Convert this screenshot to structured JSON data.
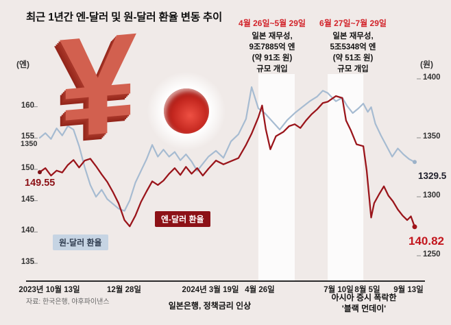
{
  "title": "최근 1년간 엔-달러 및 원-달러 환율 변동 추이",
  "source": "자료: 한국은행, 야후파이낸스",
  "graphics": {
    "yen_symbol": "¥"
  },
  "axes": {
    "left_unit": "(엔)",
    "right_unit": "(원)",
    "left_ticks": [
      "160",
      "155",
      "150",
      "145",
      "140",
      "135"
    ],
    "right_ticks": [
      "1400",
      "1350",
      "1300",
      "1250"
    ],
    "x_labels": [
      "2023년 10월 13일",
      "12월 28일",
      "2024년 3월 19일",
      "4월 26일",
      "7월 10일",
      "8월 5일",
      "9월 13일"
    ]
  },
  "labels": {
    "yen_start": "149.55",
    "won_start": "1350",
    "won_end": "1329.5",
    "yen_end": "140.82",
    "yen_legend": "엔-달러 환율",
    "won_legend": "원-달러 환율"
  },
  "annotations": {
    "intervention1": {
      "date_range": "4월 26일~5월 29일",
      "lines": [
        "일본 재무성,",
        "9조7885억 엔",
        "(약 91조 원)",
        "규모 개입"
      ]
    },
    "intervention2": {
      "date_range": "6월 27일~7월 29일",
      "lines": [
        "일본 재무성,",
        "5조5348억 엔",
        "(약 51조 원)",
        "규모 개입"
      ]
    },
    "boj": "일본은행, 정책금리 인상",
    "black_monday": [
      "아시아 증시 폭락한",
      "'블랙 먼데이'"
    ]
  },
  "colors": {
    "background": "#f0eae8",
    "yen_line": "#9a151b",
    "won_line": "#a6bbd1",
    "accent_red": "#d2232a",
    "bright_red": "#c3161d",
    "legend_won_bg": "#c6d4e3",
    "legend_yen_bg": "#8c1116",
    "band": "rgba(255,255,255,0.8)"
  },
  "chart_data": {
    "type": "line",
    "title": "최근 1년간 엔-달러 및 원-달러 환율 변동 추이",
    "x_unit": "fraction of period 2023-10-13 → 2024-09-13",
    "x_range_dates": [
      "2023년 10월 13일",
      "2024년 9월 13일"
    ],
    "legend_position": "on-chart",
    "grid": false,
    "series": [
      {
        "id": "won",
        "name": "원-달러 환율",
        "axis": "right",
        "unit": "원",
        "color": "#a6bbd1",
        "ylim": [
          1250,
          1400
        ],
        "start_value": 1350,
        "end_value": 1329.5,
        "points": [
          [
            0,
            1350
          ],
          [
            0.015,
            1354
          ],
          [
            0.03,
            1349
          ],
          [
            0.045,
            1358
          ],
          [
            0.06,
            1352
          ],
          [
            0.075,
            1360
          ],
          [
            0.09,
            1357
          ],
          [
            0.105,
            1343
          ],
          [
            0.12,
            1325
          ],
          [
            0.135,
            1310
          ],
          [
            0.15,
            1300
          ],
          [
            0.165,
            1306
          ],
          [
            0.18,
            1298
          ],
          [
            0.195,
            1294
          ],
          [
            0.21,
            1290
          ],
          [
            0.226,
            1288
          ],
          [
            0.24,
            1297
          ],
          [
            0.255,
            1312
          ],
          [
            0.27,
            1322
          ],
          [
            0.285,
            1332
          ],
          [
            0.3,
            1344
          ],
          [
            0.315,
            1334
          ],
          [
            0.33,
            1340
          ],
          [
            0.345,
            1334
          ],
          [
            0.36,
            1338
          ],
          [
            0.375,
            1331
          ],
          [
            0.39,
            1336
          ],
          [
            0.405,
            1330
          ],
          [
            0.42,
            1322
          ],
          [
            0.435,
            1328
          ],
          [
            0.45,
            1334
          ],
          [
            0.47,
            1339
          ],
          [
            0.49,
            1333
          ],
          [
            0.51,
            1347
          ],
          [
            0.53,
            1353
          ],
          [
            0.55,
            1366
          ],
          [
            0.565,
            1393
          ],
          [
            0.583,
            1375
          ],
          [
            0.6,
            1371
          ],
          [
            0.62,
            1364
          ],
          [
            0.64,
            1357
          ],
          [
            0.66,
            1365
          ],
          [
            0.68,
            1371
          ],
          [
            0.7,
            1376
          ],
          [
            0.72,
            1381
          ],
          [
            0.74,
            1385
          ],
          [
            0.755,
            1390
          ],
          [
            0.768,
            1388
          ],
          [
            0.78,
            1384
          ],
          [
            0.79,
            1381
          ],
          [
            0.807,
            1384
          ],
          [
            0.82,
            1377
          ],
          [
            0.835,
            1371
          ],
          [
            0.85,
            1375
          ],
          [
            0.863,
            1379
          ],
          [
            0.875,
            1372
          ],
          [
            0.884,
            1376
          ],
          [
            0.895,
            1362
          ],
          [
            0.91,
            1352
          ],
          [
            0.925,
            1343
          ],
          [
            0.94,
            1334
          ],
          [
            0.955,
            1341
          ],
          [
            0.97,
            1336
          ],
          [
            0.985,
            1332
          ],
          [
            1,
            1329.5
          ]
        ]
      },
      {
        "id": "yen",
        "name": "엔-달러 환율",
        "axis": "left",
        "unit": "엔",
        "color": "#9a151b",
        "ylim": [
          135,
          165
        ],
        "start_value": 149.55,
        "end_value": 140.82,
        "points": [
          [
            0,
            149.55
          ],
          [
            0.015,
            150.2
          ],
          [
            0.03,
            149.0
          ],
          [
            0.045,
            149.8
          ],
          [
            0.06,
            149.5
          ],
          [
            0.075,
            150.7
          ],
          [
            0.09,
            151.5
          ],
          [
            0.105,
            150.3
          ],
          [
            0.12,
            151.4
          ],
          [
            0.135,
            151.7
          ],
          [
            0.15,
            150.5
          ],
          [
            0.165,
            149.2
          ],
          [
            0.18,
            148.0
          ],
          [
            0.195,
            146.4
          ],
          [
            0.21,
            144.6
          ],
          [
            0.226,
            141.9
          ],
          [
            0.24,
            140.9
          ],
          [
            0.255,
            142.6
          ],
          [
            0.27,
            144.8
          ],
          [
            0.285,
            146.5
          ],
          [
            0.3,
            148.1
          ],
          [
            0.315,
            147.5
          ],
          [
            0.33,
            148.2
          ],
          [
            0.345,
            149.3
          ],
          [
            0.36,
            150.2
          ],
          [
            0.375,
            149.1
          ],
          [
            0.39,
            150.4
          ],
          [
            0.405,
            149.3
          ],
          [
            0.42,
            150.2
          ],
          [
            0.435,
            149.0
          ],
          [
            0.45,
            150.1
          ],
          [
            0.47,
            151.4
          ],
          [
            0.49,
            150.8
          ],
          [
            0.51,
            151.3
          ],
          [
            0.53,
            151.8
          ],
          [
            0.55,
            153.9
          ],
          [
            0.565,
            155.7
          ],
          [
            0.583,
            158.3
          ],
          [
            0.593,
            160.2
          ],
          [
            0.603,
            156.4
          ],
          [
            0.615,
            153.2
          ],
          [
            0.63,
            155.3
          ],
          [
            0.65,
            156.0
          ],
          [
            0.665,
            156.9
          ],
          [
            0.68,
            157.2
          ],
          [
            0.695,
            156.6
          ],
          [
            0.71,
            157.8
          ],
          [
            0.725,
            158.8
          ],
          [
            0.74,
            159.6
          ],
          [
            0.755,
            160.6
          ],
          [
            0.768,
            160.8
          ],
          [
            0.78,
            161.3
          ],
          [
            0.79,
            161.7
          ],
          [
            0.807,
            161.4
          ],
          [
            0.817,
            157.8
          ],
          [
            0.83,
            156.2
          ],
          [
            0.845,
            154.0
          ],
          [
            0.863,
            153.7
          ],
          [
            0.872,
            149.8
          ],
          [
            0.884,
            142.3
          ],
          [
            0.892,
            144.6
          ],
          [
            0.905,
            146.0
          ],
          [
            0.918,
            147.3
          ],
          [
            0.93,
            145.8
          ],
          [
            0.942,
            144.9
          ],
          [
            0.955,
            143.6
          ],
          [
            0.968,
            142.6
          ],
          [
            0.98,
            141.9
          ],
          [
            0.99,
            142.5
          ],
          [
            1,
            140.82
          ]
        ]
      }
    ],
    "highlight_bands": [
      {
        "label": "4월 26일~5월 29일",
        "t_start": 0.583,
        "t_end": 0.68
      },
      {
        "label": "6월 27일~7월 29일",
        "t_start": 0.768,
        "t_end": 0.863
      }
    ]
  }
}
